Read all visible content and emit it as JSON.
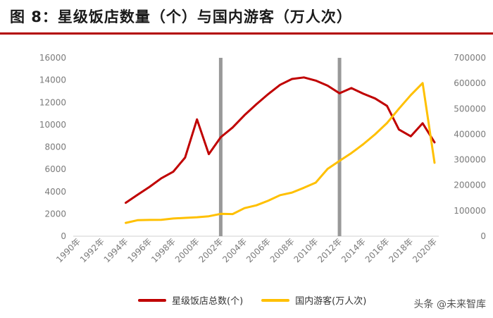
{
  "header": {
    "title": "图 8：星级饭店数量（个）与国内游客（万人次）"
  },
  "watermark": {
    "text": "头条 @未来智库"
  },
  "chart_data": {
    "type": "line",
    "x": [
      1994,
      1995,
      1996,
      1997,
      1998,
      1999,
      2000,
      2001,
      2002,
      2003,
      2004,
      2005,
      2006,
      2007,
      2008,
      2009,
      2010,
      2011,
      2012,
      2013,
      2014,
      2015,
      2016,
      2017,
      2018,
      2019,
      2020
    ],
    "xticks": [
      "1990年",
      "1992年",
      "1994年",
      "1996年",
      "1998年",
      "2000年",
      "2002年",
      "2004年",
      "2006年",
      "2008年",
      "2010年",
      "2012年",
      "2014年",
      "2016年",
      "2018年",
      "2020年"
    ],
    "xrange": [
      1990,
      2020
    ],
    "y_left": {
      "min": 0,
      "max": 16000,
      "ticks": [
        "0",
        "2000",
        "4000",
        "6000",
        "8000",
        "10000",
        "12000",
        "14000",
        "16000"
      ]
    },
    "y_right": {
      "min": 0,
      "max": 700000,
      "ticks": [
        "0",
        "100000",
        "200000",
        "300000",
        "400000",
        "500000",
        "600000",
        "700000"
      ]
    },
    "vlines": [
      2002,
      2012
    ],
    "vline_color": "#999999",
    "series": [
      {
        "name": "星级饭店总数(个)",
        "axis": "left",
        "color": "#c00000",
        "values": [
          2995,
          3720,
          4420,
          5200,
          5780,
          7050,
          10480,
          7360,
          8880,
          9750,
          10850,
          11830,
          12750,
          13580,
          14100,
          14240,
          13960,
          13500,
          12820,
          13290,
          12780,
          12350,
          11690,
          9570,
          8960,
          10130,
          8420
        ]
      },
      {
        "name": "国内游客(万人次)",
        "axis": "right",
        "color": "#ffc000",
        "values": [
          52400,
          62900,
          63900,
          64400,
          69500,
          71900,
          74400,
          78400,
          87800,
          87000,
          110200,
          121200,
          139400,
          161000,
          171200,
          190200,
          210300,
          264100,
          295700,
          326200,
          361100,
          400000,
          444000,
          500100,
          553900,
          601000,
          287900
        ]
      }
    ],
    "legend_position": "bottom",
    "grid": false
  }
}
